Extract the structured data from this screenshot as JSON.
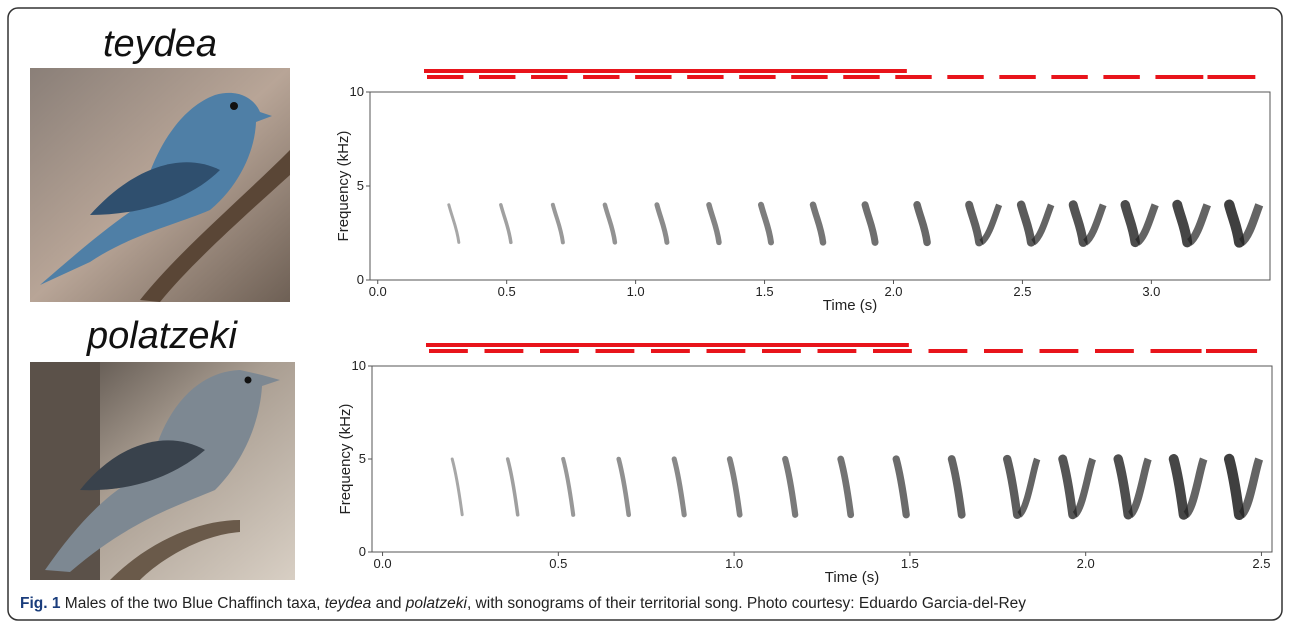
{
  "chart_data": [
    {
      "type": "spectrogram",
      "title": "teydea",
      "xlabel": "Time (s)",
      "ylabel": "Frequency (kHz)",
      "xlim": [
        -0.03,
        3.46
      ],
      "ylim": [
        0,
        10
      ],
      "xticks": [
        {
          "value": 0,
          "label": "0.0"
        },
        0.5,
        {
          "value": 1,
          "label": "1.0"
        },
        1.5,
        {
          "value": 2,
          "label": "2.0"
        },
        2.5,
        {
          "value": 3,
          "label": "3.0"
        }
      ],
      "yticks": [
        0,
        5,
        10
      ]
    },
    {
      "type": "spectrogram",
      "title": "polatzeki",
      "xlabel": "Time (s)",
      "ylabel": "Frequency (kHz)",
      "xlim": [
        -0.03,
        2.53
      ],
      "ylim": [
        0,
        10
      ],
      "xticks": [
        {
          "value": 0,
          "label": "0.0"
        },
        0.5,
        {
          "value": 1,
          "label": "1.0"
        },
        1.5,
        {
          "value": 2,
          "label": "2.0"
        },
        2.5
      ],
      "yticks": [
        0,
        5,
        10
      ]
    }
  ],
  "caption": {
    "label": "Fig. 1",
    "segments": [
      "Males of the two Blue Chaffinch taxa, ",
      "teydea",
      " and ",
      "polatzeki",
      ", with sonograms of their territorial song. Photo courtesy: Eduardo Garcia-del-Rey"
    ]
  }
}
